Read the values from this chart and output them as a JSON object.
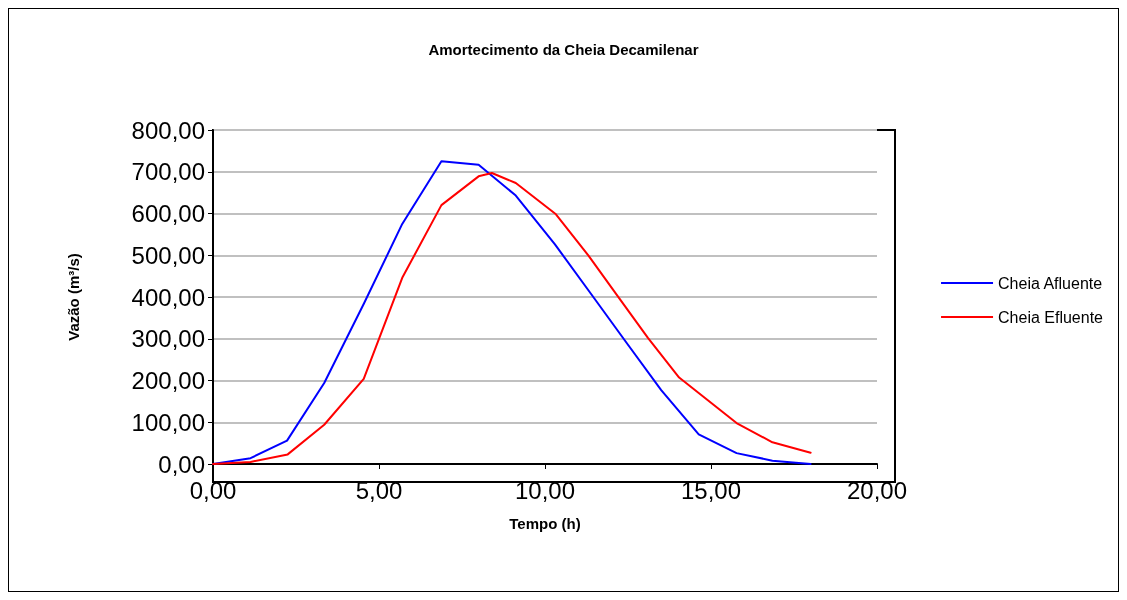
{
  "chart_data": {
    "type": "line",
    "title": "Amortecimento da Cheia Decamilenar",
    "xlabel": "Tempo (h)",
    "ylabel": "Vazão (m³/s)",
    "xlim": [
      0,
      20
    ],
    "xticks": [
      {
        "value": 0,
        "label": "0,00"
      },
      {
        "value": 5,
        "label": "5,00"
      },
      {
        "value": 10,
        "label": "10,00"
      },
      {
        "value": 15,
        "label": "15,00"
      },
      {
        "value": 20,
        "label": "20,00"
      }
    ],
    "ylim": [
      0,
      800
    ],
    "yticks": [
      {
        "value": 0,
        "label": "0,00"
      },
      {
        "value": 100,
        "label": "100,00"
      },
      {
        "value": 200,
        "label": "200,00"
      },
      {
        "value": 300,
        "label": "300,00"
      },
      {
        "value": 400,
        "label": "400,00"
      },
      {
        "value": 500,
        "label": "500,00"
      },
      {
        "value": 600,
        "label": "600,00"
      },
      {
        "value": 700,
        "label": "700,00"
      },
      {
        "value": 800,
        "label": "800,00"
      }
    ],
    "grid": "y",
    "legend": "right",
    "marker": "none",
    "line_style": "solid",
    "series": [
      {
        "name": "Cheia Afluente",
        "color": "#0000ff",
        "x": [
          0,
          1.13,
          2.23,
          3.35,
          4.55,
          5.7,
          6.88,
          8.0,
          9.12,
          10.3,
          11.4,
          12.45,
          13.5,
          14.63,
          15.77,
          16.85,
          18.0
        ],
        "values": [
          0,
          14,
          56,
          194,
          385,
          575,
          725,
          717,
          643,
          526,
          406,
          291,
          177,
          71,
          26,
          8,
          0
        ]
      },
      {
        "name": "Cheia Efluente",
        "color": "#ff0000",
        "x": [
          0,
          1.13,
          2.25,
          3.35,
          4.54,
          5.7,
          6.88,
          8.0,
          8.4,
          9.12,
          10.33,
          11.31,
          12.2,
          13.1,
          14.04,
          15.77,
          16.85,
          18.0
        ],
        "values": [
          0,
          5,
          23,
          94,
          204,
          446,
          620,
          689,
          697,
          673,
          598,
          499,
          401,
          302,
          207,
          98,
          52,
          27
        ]
      }
    ]
  }
}
